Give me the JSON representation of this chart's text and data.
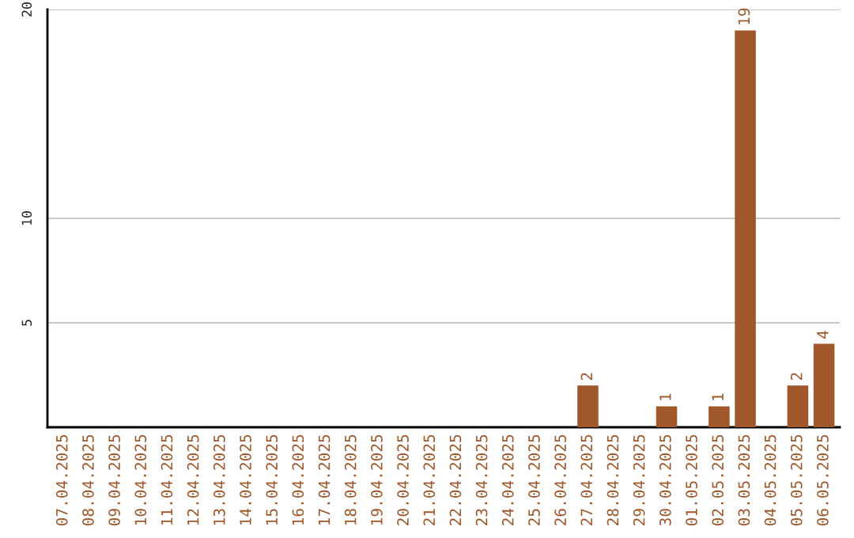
{
  "chart_data": {
    "type": "bar",
    "categories": [
      "07.04.2025",
      "08.04.2025",
      "09.04.2025",
      "10.04.2025",
      "11.04.2025",
      "12.04.2025",
      "13.04.2025",
      "14.04.2025",
      "15.04.2025",
      "16.04.2025",
      "17.04.2025",
      "18.04.2025",
      "19.04.2025",
      "20.04.2025",
      "21.04.2025",
      "22.04.2025",
      "23.04.2025",
      "24.04.2025",
      "25.04.2025",
      "26.04.2025",
      "27.04.2025",
      "28.04.2025",
      "29.04.2025",
      "30.04.2025",
      "01.05.2025",
      "02.05.2025",
      "03.05.2025",
      "04.05.2025",
      "05.05.2025",
      "06.05.2025"
    ],
    "values": [
      0,
      0,
      0,
      0,
      0,
      0,
      0,
      0,
      0,
      0,
      0,
      0,
      0,
      0,
      0,
      0,
      0,
      0,
      0,
      0,
      2,
      0,
      0,
      1,
      0,
      1,
      19,
      0,
      2,
      4
    ],
    "value_labels": [
      null,
      null,
      null,
      null,
      null,
      null,
      null,
      null,
      null,
      null,
      null,
      null,
      null,
      null,
      null,
      null,
      null,
      null,
      null,
      null,
      "2",
      null,
      null,
      "1",
      null,
      "1",
      "19",
      null,
      "2",
      "4"
    ],
    "color": "#a0572a",
    "ylim": [
      0,
      20
    ],
    "yticks": [
      5,
      10,
      20
    ],
    "grid": "y",
    "legend": false
  }
}
